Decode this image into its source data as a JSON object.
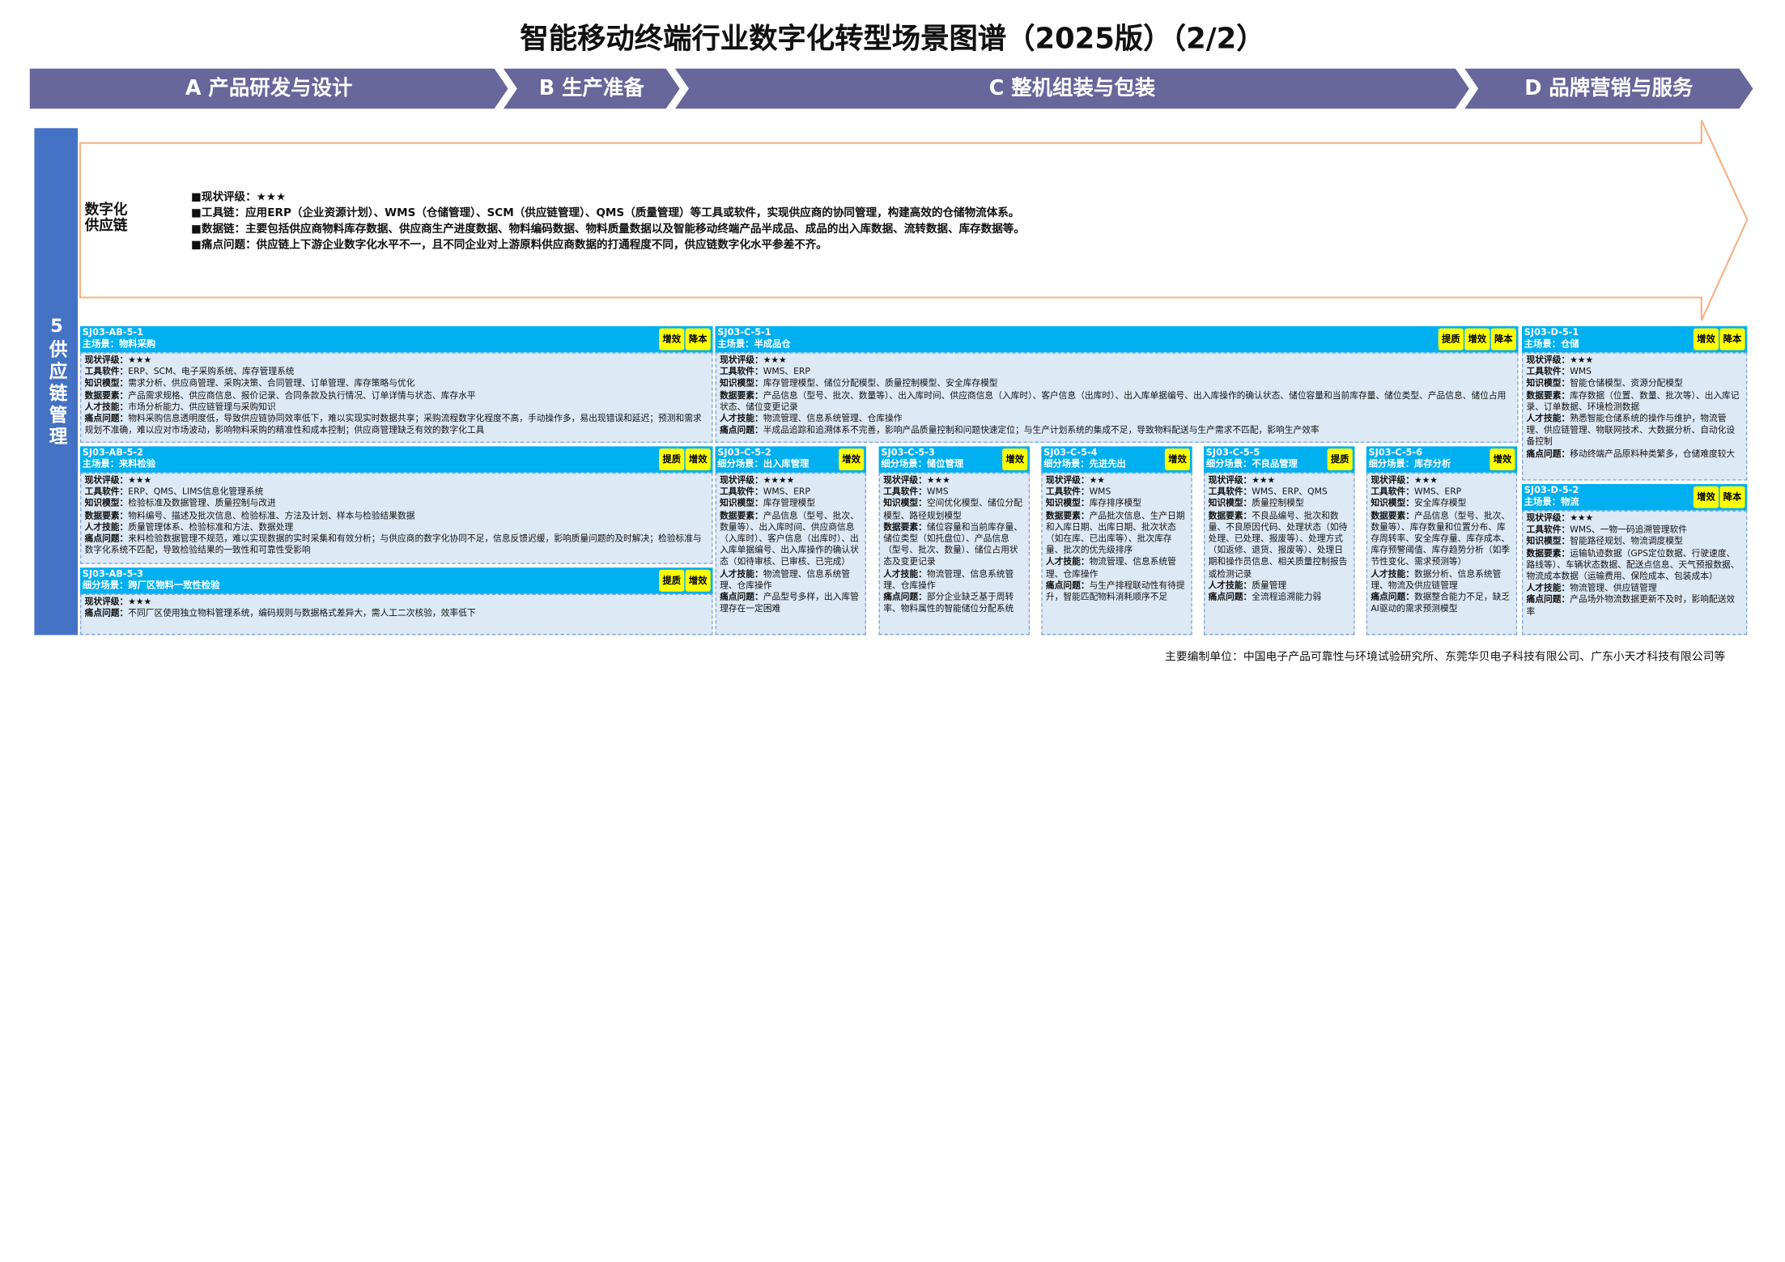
{
  "title": "智能移动终端行业数字化转型场景图谱（2025版）（2/2）",
  "phases": [
    "A 产品研发与设计",
    "B 生产准备",
    "C 整机组装与包装",
    "D 品牌营销与服务"
  ],
  "section": {
    "label": "5供应链管理",
    "overview": {
      "name": "数字化供应链",
      "lines": [
        {
          "label": "现状评级：",
          "text": "★★★"
        },
        {
          "label": "工具链：",
          "text": "应用ERP（企业资源计划）、WMS（仓储管理）、SCM（供应链管理）、QMS（质量管理）等工具或软件，实现供应商的协同管理，构建高效的仓储物流体系。"
        },
        {
          "label": "数据链：",
          "text": "主要包括供应商物料库存数据、供应商生产进度数据、物料编码数据、物料质量数据以及智能移动终端产品半成品、成品的出入库数据、流转数据、库存数据等。"
        },
        {
          "label": "痛点问题：",
          "text": "供应链上下游企业数字化水平不一，且不同企业对上游原料供应商数据的打通程度不同，供应链数字化水平参差不齐。"
        }
      ]
    },
    "cards": [
      {
        "id": "SJ03-AB-5-1",
        "scene": "主场景：物料采购",
        "tags": [
          "增效",
          "降本"
        ],
        "fields": [
          {
            "label": "现状评级：",
            "value": "★★★"
          },
          {
            "label": "工具软件：",
            "value": "ERP、SCM、电子采购系统、库存管理系统"
          },
          {
            "label": "知识模型：",
            "value": "需求分析、供应商管理、采购决策、合同管理、订单管理、库存策略与优化"
          },
          {
            "label": "数据要素：",
            "value": "产品需求规格、供应商信息、报价记录、合同条款及执行情况、订单详情与状态、库存水平"
          },
          {
            "label": "人才技能：",
            "value": "市场分析能力、供应链管理与采购知识"
          },
          {
            "label": "痛点问题：",
            "value": "物料采购信息透明度低，导致供应链协同效率低下，难以实现实时数据共享；采购流程数字化程度不高，手动操作多，易出现错误和延迟；预测和需求规划不准确，难以应对市场波动，影响物料采购的精准性和成本控制；供应商管理缺乏有效的数字化工具"
          }
        ]
      },
      {
        "id": "SJ03-C-5-1",
        "scene": "主场景：半成品仓",
        "tags": [
          "提质",
          "增效",
          "降本"
        ],
        "fields": [
          {
            "label": "现状评级：",
            "value": "★★★"
          },
          {
            "label": "工具软件：",
            "value": "WMS、ERP"
          },
          {
            "label": "知识模型：",
            "value": "库存管理模型、储位分配模型、质量控制模型、安全库存模型"
          },
          {
            "label": "数据要素：",
            "value": "产品信息（型号、批次、数量等）、出入库时间、供应商信息（入库时）、客户信息（出库时）、出入库单据编号、出入库操作的确认状态、储位容量和当前库存量、储位类型、产品信息、储位占用状态、储位变更记录"
          },
          {
            "label": "人才技能：",
            "value": "物流管理、信息系统管理、仓库操作"
          },
          {
            "label": "痛点问题：",
            "value": "半成品追踪和追溯体系不完善，影响产品质量控制和问题快速定位；与生产计划系统的集成不足，导致物料配送与生产需求不匹配，影响生产效率"
          }
        ]
      },
      {
        "id": "SJ03-D-5-1",
        "scene": "主场景：仓储",
        "tags": [
          "增效",
          "降本"
        ],
        "fields": [
          {
            "label": "现状评级：",
            "value": "★★★"
          },
          {
            "label": "工具软件：",
            "value": "WMS"
          },
          {
            "label": "知识模型：",
            "value": "智能仓储模型、资源分配模型"
          },
          {
            "label": "数据要素：",
            "value": "库存数据（位置、数量、批次等）、出入库记录、订单数据、环境检测数据"
          },
          {
            "label": "人才技能：",
            "value": "熟悉智能仓储系统的操作与维护，物流管理、供应链管理、物联网技术、大数据分析、自动化设备控制"
          },
          {
            "label": "痛点问题：",
            "value": "移动终端产品原料种类繁多，仓储难度较大"
          }
        ]
      },
      {
        "id": "SJ03-AB-5-2",
        "scene": "主场景：来料检验",
        "tags": [
          "提质",
          "增效"
        ],
        "fields": [
          {
            "label": "现状评级：",
            "value": "★★★"
          },
          {
            "label": "工具软件：",
            "value": "ERP、QMS、LIMS信息化管理系统"
          },
          {
            "label": "知识模型：",
            "value": "检验标准及数据管理、质量控制与改进"
          },
          {
            "label": "数据要素：",
            "value": "物料编号、描述及批次信息、检验标准、方法及计划、样本与检验结果数据"
          },
          {
            "label": "人才技能：",
            "value": "质量管理体系、检验标准和方法、数据处理"
          },
          {
            "label": "痛点问题：",
            "value": "来料检验数据管理不规范，难以实现数据的实时采集和有效分析；与供应商的数字化协同不足，信息反馈迟缓，影响质量问题的及时解决；检验标准与数字化系统不匹配，导致检验结果的一致性和可靠性受影响"
          }
        ]
      },
      {
        "id": "SJ03-AB-5-3",
        "scene": "细分场景：跨厂区物料一致性检验",
        "tags": [
          "提质",
          "增效"
        ],
        "fields": [
          {
            "label": "现状评级：",
            "value": "★★★"
          },
          {
            "label": "痛点问题：",
            "value": "不同厂区使用独立物料管理系统，编码规则与数据格式差异大，需人工二次核验，效率低下"
          }
        ]
      },
      {
        "id": "SJ03-C-5-2",
        "scene": "细分场景：出入库管理",
        "tags": [
          "增效"
        ],
        "fields": [
          {
            "label": "现状评级：",
            "value": "★★★★"
          },
          {
            "label": "工具软件：",
            "value": "WMS、ERP"
          },
          {
            "label": "知识模型：",
            "value": "库存管理模型"
          },
          {
            "label": "数据要素：",
            "value": "产品信息（型号、批次、数量等）、出入库时间、供应商信息（入库时）、客户信息（出库时）、出入库单据编号、出入库操作的确认状态（如待审核、已审核、已完成）"
          },
          {
            "label": "人才技能：",
            "value": "物流管理、信息系统管理、仓库操作"
          },
          {
            "label": "痛点问题：",
            "value": "产品型号多样，出入库管理存在一定困难"
          }
        ]
      },
      {
        "id": "SJ03-C-5-3",
        "scene": "细分场景：储位管理",
        "tags": [
          "增效"
        ],
        "fields": [
          {
            "label": "现状评级：",
            "value": "★★★"
          },
          {
            "label": "工具软件：",
            "value": "WMS"
          },
          {
            "label": "知识模型：",
            "value": "空间优化模型、储位分配模型、路径规划模型"
          },
          {
            "label": "数据要素：",
            "value": "储位容量和当前库存量、储位类型（如托盘位）、产品信息（型号、批次、数量）、储位占用状态及变更记录"
          },
          {
            "label": "人才技能：",
            "value": "物流管理、信息系统管理、仓库操作"
          },
          {
            "label": "痛点问题：",
            "value": "部分企业缺乏基于周转率、物料属性的智能储位分配系统"
          }
        ]
      },
      {
        "id": "SJ03-C-5-4",
        "scene": "细分场景：先进先出",
        "tags": [
          "增效"
        ],
        "fields": [
          {
            "label": "现状评级：",
            "value": "★★"
          },
          {
            "label": "工具软件：",
            "value": "WMS"
          },
          {
            "label": "知识模型：",
            "value": "库存排序模型"
          },
          {
            "label": "数据要素：",
            "value": "产品批次信息、生产日期和入库日期、出库日期、批次状态（如在库、已出库等）、批次库存量、批次的优先级排序"
          },
          {
            "label": "人才技能：",
            "value": "物流管理、信息系统管理、仓库操作"
          },
          {
            "label": "痛点问题：",
            "value": "与生产排程联动性有待提升，智能匹配物料消耗顺序不足"
          }
        ]
      },
      {
        "id": "SJ03-C-5-5",
        "scene": "细分场景：不良品管理",
        "tags": [
          "提质"
        ],
        "fields": [
          {
            "label": "现状评级：",
            "value": "★★★"
          },
          {
            "label": "工具软件：",
            "value": "WMS、ERP、QMS"
          },
          {
            "label": "知识模型：",
            "value": "质量控制模型"
          },
          {
            "label": "数据要素：",
            "value": "不良品编号、批次和数量、不良原因代码、处理状态（如待处理、已处理、报废等）、处理方式（如返修、退货、报废等）、处理日期和操作员信息、相关质量控制报告或检测记录"
          },
          {
            "label": "人才技能：",
            "value": "质量管理"
          },
          {
            "label": "痛点问题：",
            "value": "全流程追溯能力弱"
          }
        ]
      },
      {
        "id": "SJ03-C-5-6",
        "scene": "细分场景：库存分析",
        "tags": [
          "增效"
        ],
        "fields": [
          {
            "label": "现状评级：",
            "value": "★★★"
          },
          {
            "label": "工具软件：",
            "value": "WMS、ERP"
          },
          {
            "label": "知识模型：",
            "value": "安全库存模型"
          },
          {
            "label": "数据要素：",
            "value": "产品信息（型号、批次、数量等）、库存数量和位置分布、库存周转率、安全库存量、库存成本、库存预警阈值、库存趋势分析（如季节性变化、需求预测等）"
          },
          {
            "label": "人才技能：",
            "value": "数据分析、信息系统管理、物流及供应链管理"
          },
          {
            "label": "痛点问题：",
            "value": "数据整合能力不足，缺乏AI驱动的需求预测模型"
          }
        ]
      },
      {
        "id": "SJ03-D-5-2",
        "scene": "主场景：物流",
        "tags": [
          "增效",
          "降本"
        ],
        "fields": [
          {
            "label": "现状评级：",
            "value": "★★★"
          },
          {
            "label": "工具软件：",
            "value": "WMS、一物一码追溯管理软件"
          },
          {
            "label": "知识模型：",
            "value": "智能路径规划、物流调度模型"
          },
          {
            "label": "数据要素：",
            "value": "运输轨迹数据（GPS定位数据、行驶速度、路线等）、车辆状态数据、配送点信息、天气预报数据、物流成本数据（运输费用、保险成本、包装成本）"
          },
          {
            "label": "人才技能：",
            "value": "物流管理、供应链管理"
          },
          {
            "label": "痛点问题：",
            "value": "产品场外物流数据更新不及时，影响配送效率"
          }
        ]
      }
    ]
  },
  "footer": "主要编制单位：中国电子产品可靠性与环境试验研究所、东莞华贝电子科技有限公司、广东小天才科技有限公司等"
}
